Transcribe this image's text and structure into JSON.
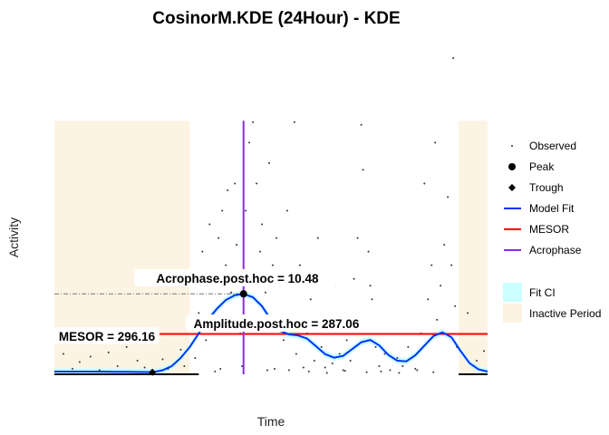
{
  "chart_data": {
    "type": "scatter",
    "title": "CosinorM.KDE (24Hour) - KDE",
    "xlabel": "Time",
    "ylabel": "Activity",
    "xlim": [
      0,
      24
    ],
    "ylim": [
      0,
      2000
    ],
    "xticks": [
      0,
      6,
      12,
      18,
      24
    ],
    "yticks": [
      0,
      500,
      1000,
      1500,
      2000
    ],
    "grid": false,
    "legend_position": "right",
    "colors": {
      "observed": "#333333",
      "fit": "#0033ff",
      "ci": "#ccffff",
      "mesor": "#ff0000",
      "acrophase": "#8a2be2",
      "inactive": "#fdf3e3",
      "peak": "#000000"
    },
    "inactive_periods": [
      [
        0,
        7.5
      ],
      [
        22.4,
        24
      ]
    ],
    "inactive_top": 1860,
    "mesor": 296.16,
    "amplitude": 287.06,
    "acrophase": 10.48,
    "peak": {
      "x": 10.48,
      "y": 590
    },
    "trough": {
      "x": 5.43,
      "y": 15
    },
    "ci_halfwidth": 25,
    "fit": [
      [
        0,
        20
      ],
      [
        0.5,
        20
      ],
      [
        1,
        20
      ],
      [
        2,
        20
      ],
      [
        3,
        19
      ],
      [
        4,
        18
      ],
      [
        5,
        17
      ],
      [
        5.5,
        16
      ],
      [
        6,
        30
      ],
      [
        6.5,
        60
      ],
      [
        7,
        120
      ],
      [
        7.5,
        200
      ],
      [
        8,
        300
      ],
      [
        8.5,
        400
      ],
      [
        9,
        480
      ],
      [
        9.5,
        545
      ],
      [
        10,
        580
      ],
      [
        10.48,
        590
      ],
      [
        11,
        565
      ],
      [
        11.5,
        500
      ],
      [
        12,
        400
      ],
      [
        12.5,
        320
      ],
      [
        13,
        292
      ],
      [
        13.5,
        285
      ],
      [
        14,
        262
      ],
      [
        14.5,
        205
      ],
      [
        15,
        148
      ],
      [
        15.5,
        122
      ],
      [
        16,
        135
      ],
      [
        16.5,
        185
      ],
      [
        17,
        235
      ],
      [
        17.5,
        252
      ],
      [
        18,
        212
      ],
      [
        18.5,
        142
      ],
      [
        19,
        100
      ],
      [
        19.5,
        95
      ],
      [
        20,
        140
      ],
      [
        20.5,
        210
      ],
      [
        21,
        280
      ],
      [
        21.5,
        308
      ],
      [
        22,
        272
      ],
      [
        22.5,
        172
      ],
      [
        23,
        82
      ],
      [
        23.5,
        36
      ],
      [
        24,
        20
      ]
    ],
    "observed": [
      [
        0.5,
        150
      ],
      [
        1,
        40
      ],
      [
        1.4,
        90
      ],
      [
        2,
        130
      ],
      [
        2.5,
        30
      ],
      [
        3,
        160
      ],
      [
        3.5,
        60
      ],
      [
        4,
        200
      ],
      [
        4.6,
        100
      ],
      [
        5,
        50
      ],
      [
        5.5,
        250
      ],
      [
        6,
        110
      ],
      [
        6.3,
        40
      ],
      [
        7,
        180
      ],
      [
        7.2,
        60
      ],
      [
        7.8,
        120
      ],
      [
        8,
        450
      ],
      [
        8.2,
        900
      ],
      [
        8.4,
        250
      ],
      [
        8.6,
        1100
      ],
      [
        8.8,
        700
      ],
      [
        9,
        350
      ],
      [
        9.1,
        1000
      ],
      [
        9.3,
        1200
      ],
      [
        9.5,
        800
      ],
      [
        9.6,
        1350
      ],
      [
        9.8,
        600
      ],
      [
        10,
        1400
      ],
      [
        10.1,
        950
      ],
      [
        10.3,
        300
      ],
      [
        10.6,
        1200
      ],
      [
        10.8,
        1700
      ],
      [
        11,
        1850
      ],
      [
        11.2,
        1400
      ],
      [
        11.4,
        900
      ],
      [
        11.5,
        1100
      ],
      [
        11.7,
        600
      ],
      [
        11.9,
        1550
      ],
      [
        12.1,
        800
      ],
      [
        12.3,
        1000
      ],
      [
        12.5,
        650
      ],
      [
        12.7,
        250
      ],
      [
        12.9,
        1200
      ],
      [
        13.1,
        400
      ],
      [
        13.3,
        1850
      ],
      [
        13.4,
        150
      ],
      [
        13.6,
        800
      ],
      [
        13.8,
        50
      ],
      [
        14,
        300
      ],
      [
        14.2,
        550
      ],
      [
        14.4,
        100
      ],
      [
        14.6,
        1000
      ],
      [
        14.8,
        200
      ],
      [
        15,
        50
      ],
      [
        15.2,
        350
      ],
      [
        15.4,
        80
      ],
      [
        15.6,
        650
      ],
      [
        15.8,
        150
      ],
      [
        16,
        30
      ],
      [
        16.2,
        250
      ],
      [
        16.4,
        100
      ],
      [
        16.6,
        700
      ],
      [
        16.8,
        1000
      ],
      [
        17,
        1830
      ],
      [
        17.1,
        1500
      ],
      [
        17.2,
        400
      ],
      [
        17.4,
        900
      ],
      [
        17.5,
        650
      ],
      [
        17.6,
        550
      ],
      [
        17.8,
        200
      ],
      [
        18,
        60
      ],
      [
        18.3,
        150
      ],
      [
        18.6,
        30
      ],
      [
        19,
        120
      ],
      [
        19.3,
        60
      ],
      [
        19.6,
        200
      ],
      [
        20,
        40
      ],
      [
        20.3,
        300
      ],
      [
        20.5,
        1400
      ],
      [
        20.7,
        550
      ],
      [
        20.9,
        800
      ],
      [
        21.1,
        1700
      ],
      [
        21.2,
        400
      ],
      [
        21.4,
        650
      ],
      [
        21.6,
        950
      ],
      [
        21.8,
        1300
      ],
      [
        22,
        800
      ],
      [
        22.1,
        2320
      ],
      [
        22.2,
        500
      ],
      [
        22.3,
        200
      ],
      [
        22.9,
        450
      ],
      [
        23.4,
        100
      ],
      [
        23.8,
        170
      ],
      [
        12.2,
        40
      ],
      [
        13,
        30
      ],
      [
        14.1,
        20
      ],
      [
        15.1,
        10
      ],
      [
        16.1,
        25
      ],
      [
        17.3,
        15
      ],
      [
        18.1,
        20
      ],
      [
        19.1,
        10
      ],
      [
        20.1,
        30
      ],
      [
        21,
        15
      ],
      [
        10.4,
        60
      ],
      [
        9.2,
        40
      ],
      [
        8.9,
        20
      ],
      [
        11.8,
        30
      ]
    ]
  },
  "legend": [
    {
      "label": "Observed",
      "symbol": "dot"
    },
    {
      "label": "Peak",
      "symbol": "circle"
    },
    {
      "label": "Trough",
      "symbol": "diamond"
    },
    {
      "label": "Model Fit",
      "symbol": "line",
      "color": "#0033ff"
    },
    {
      "label": "MESOR",
      "symbol": "line",
      "color": "#ff0000"
    },
    {
      "label": "Acrophase",
      "symbol": "line",
      "color": "#8a2be2"
    },
    {
      "label": "Fit CI",
      "symbol": "box",
      "color": "#ccffff"
    },
    {
      "label": "Inactive Period",
      "symbol": "box",
      "color": "#fdf3e3"
    }
  ],
  "annotations": {
    "acrophase_label": "Acrophase.post.hoc = 10.48",
    "mesor_label": "MESOR = 296.16",
    "amplitude_label": "Amplitude.post.hoc = 287.06"
  }
}
